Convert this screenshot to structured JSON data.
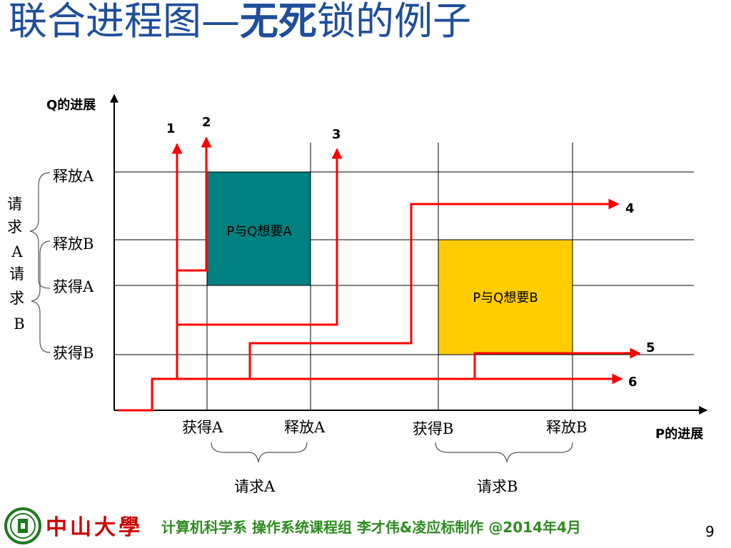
{
  "title": {
    "part1": "联合进程图—",
    "part2": "无死",
    "part3": "锁的例子"
  },
  "axes": {
    "y_label": "Q的进展",
    "x_label": "P的进展"
  },
  "q_labels": {
    "release_a": "释放A",
    "release_b": "释放B",
    "acquire_a": "获得A",
    "acquire_b": "获得B"
  },
  "p_labels": {
    "acquire_a": "获得A",
    "release_a": "释放A",
    "acquire_b": "获得B",
    "release_b": "释放B"
  },
  "brace_labels": {
    "left_request_a": "请求A",
    "left_request_b": "请求B",
    "bottom_request_a": "请求A",
    "bottom_request_b": "请求B"
  },
  "regions": {
    "want_a": "P与Q想要A",
    "want_b": "P与Q想要B"
  },
  "path_labels": [
    "1",
    "2",
    "3",
    "4",
    "5",
    "6"
  ],
  "colors": {
    "title": "#1f4e9a",
    "path": "#ff0000",
    "region_a": "#008080",
    "region_b": "#ffcc00",
    "grid": "#000000",
    "footer": "#2e8b22"
  },
  "footer": {
    "logo_text": "中山大學",
    "credit": "计算机科学系 操作系统课程组 李才伟&凌应标制作 @2014年4月",
    "page": "9"
  }
}
